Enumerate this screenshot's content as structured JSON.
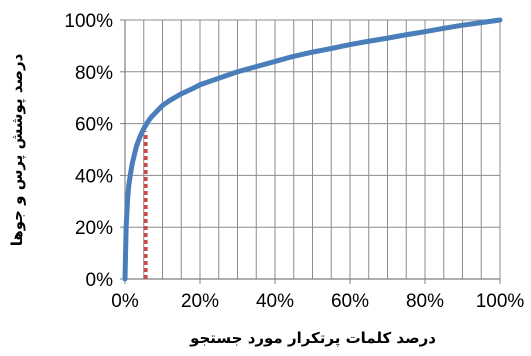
{
  "chart_data": {
    "type": "line",
    "xlabel": "درصد کلمات پرتکرار مورد جستجو",
    "ylabel": "درصد پوشش پرس و جوها",
    "xlim": [
      0,
      100
    ],
    "ylim": [
      0,
      100
    ],
    "x_ticks": [
      "0%",
      "20%",
      "40%",
      "60%",
      "80%",
      "100%"
    ],
    "y_ticks": [
      "0%",
      "20%",
      "40%",
      "60%",
      "80%",
      "100%"
    ],
    "grid": {
      "vertical_step": 5,
      "horizontal_step": 20
    },
    "legend": "none",
    "series": [
      {
        "color": "#4a7ebb",
        "style": "solid",
        "x": [
          0,
          0.3,
          0.7,
          1,
          1.5,
          2,
          2.5,
          3,
          4,
          5,
          6,
          7,
          8,
          10,
          12,
          15,
          18,
          20,
          25,
          30,
          35,
          40,
          45,
          50,
          55,
          60,
          65,
          70,
          75,
          80,
          85,
          90,
          95,
          100
        ],
        "y": [
          0,
          20,
          31,
          36,
          41,
          45,
          48,
          51,
          55,
          58,
          60.5,
          62.5,
          64,
          67,
          69,
          71.5,
          73.5,
          75,
          77.5,
          80,
          82,
          84,
          86,
          87.6,
          89,
          90.5,
          91.8,
          93,
          94.3,
          95.5,
          96.8,
          98,
          99,
          100
        ]
      },
      {
        "color": "#c0504d",
        "style": "dotted",
        "x": [
          5.5,
          5.5
        ],
        "y": [
          0,
          57
        ]
      }
    ]
  }
}
